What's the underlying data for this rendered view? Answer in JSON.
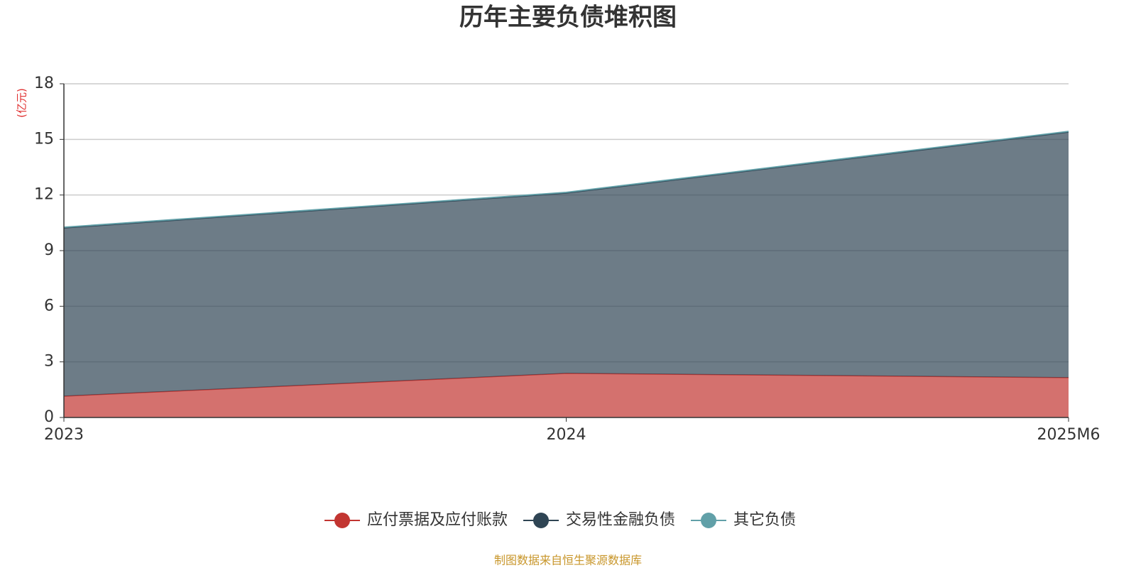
{
  "chart_data": {
    "type": "stacked_area",
    "title": "历年主要负债堆积图",
    "y_label": "(亿元)",
    "source": "制图数据来自恒生聚源数据库",
    "categories": [
      "2023",
      "2024",
      "2025M6"
    ],
    "series": [
      {
        "name": "应付票据及应付账款",
        "color": "#c23531",
        "values": [
          1.15,
          2.38,
          2.15
        ]
      },
      {
        "name": "交易性金融负债",
        "color": "#2f4554",
        "values": [
          9.07,
          9.72,
          13.24
        ]
      },
      {
        "name": "其它负债",
        "color": "#61a0a8",
        "values": [
          0.05,
          0.05,
          0.05
        ]
      }
    ],
    "ylim": [
      0,
      18
    ],
    "yticks": [
      0,
      3,
      6,
      9,
      12,
      15,
      18
    ],
    "grid": true
  }
}
